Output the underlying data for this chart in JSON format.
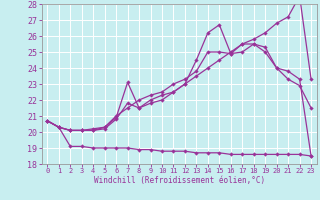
{
  "xlabel": "Windchill (Refroidissement éolien,°C)",
  "bg_color": "#c8eef0",
  "grid_color": "#b0b0b0",
  "line_color": "#993399",
  "xlim": [
    -0.5,
    23.5
  ],
  "ylim": [
    18,
    28
  ],
  "yticks": [
    18,
    19,
    20,
    21,
    22,
    23,
    24,
    25,
    26,
    27,
    28
  ],
  "xticks": [
    0,
    1,
    2,
    3,
    4,
    5,
    6,
    7,
    8,
    9,
    10,
    11,
    12,
    13,
    14,
    15,
    16,
    17,
    18,
    19,
    20,
    21,
    22,
    23
  ],
  "line1_x": [
    0,
    1,
    2,
    3,
    4,
    5,
    6,
    7,
    8,
    9,
    10,
    11,
    12,
    13,
    14,
    15,
    16,
    17,
    18,
    19,
    20,
    21,
    22,
    23
  ],
  "line1_y": [
    20.7,
    20.3,
    20.1,
    20.1,
    20.1,
    20.2,
    20.8,
    21.8,
    21.5,
    22.0,
    22.3,
    22.5,
    23.0,
    23.5,
    24.0,
    24.5,
    25.0,
    25.5,
    25.8,
    26.2,
    26.8,
    27.2,
    28.5,
    23.3
  ],
  "line2_x": [
    0,
    1,
    2,
    3,
    4,
    5,
    6,
    7,
    8,
    9,
    10,
    11,
    12,
    13,
    14,
    15,
    16,
    17,
    18,
    19,
    20,
    21,
    22,
    23
  ],
  "line2_y": [
    20.7,
    20.3,
    20.1,
    20.1,
    20.1,
    20.3,
    20.9,
    23.1,
    21.5,
    21.8,
    22.0,
    22.5,
    23.0,
    24.5,
    26.2,
    26.7,
    24.9,
    25.0,
    25.5,
    25.0,
    24.0,
    23.3,
    22.9,
    21.5
  ],
  "line3_x": [
    0,
    1,
    2,
    3,
    4,
    5,
    6,
    7,
    8,
    9,
    10,
    11,
    12,
    13,
    14,
    15,
    16,
    17,
    18,
    19,
    20,
    21,
    22,
    23
  ],
  "line3_y": [
    20.7,
    20.3,
    20.1,
    20.1,
    20.2,
    20.3,
    21.0,
    21.5,
    22.0,
    22.3,
    22.5,
    23.0,
    23.3,
    23.8,
    25.0,
    25.0,
    24.9,
    25.5,
    25.5,
    25.3,
    24.0,
    23.8,
    23.3,
    18.5
  ],
  "line4_x": [
    0,
    1,
    2,
    3,
    4,
    5,
    6,
    7,
    8,
    9,
    10,
    11,
    12,
    13,
    14,
    15,
    16,
    17,
    18,
    19,
    20,
    21,
    22,
    23
  ],
  "line4_y": [
    20.7,
    20.3,
    19.1,
    19.1,
    19.0,
    19.0,
    19.0,
    19.0,
    18.9,
    18.9,
    18.8,
    18.8,
    18.8,
    18.7,
    18.7,
    18.7,
    18.6,
    18.6,
    18.6,
    18.6,
    18.6,
    18.6,
    18.6,
    18.5
  ]
}
